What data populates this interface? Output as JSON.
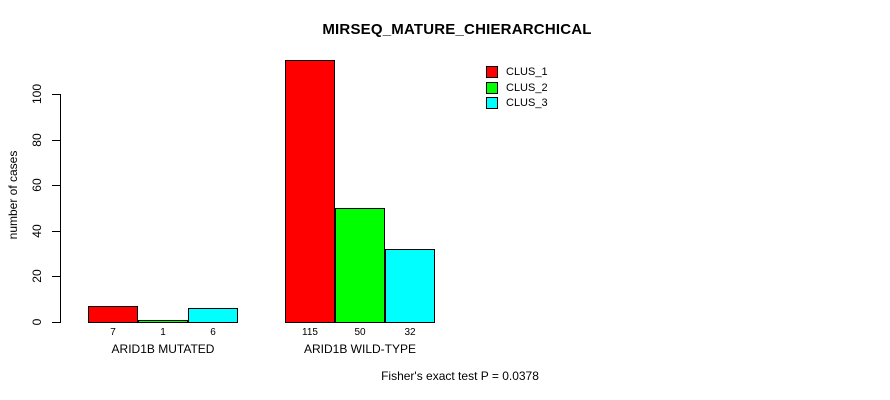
{
  "title": "MIRSEQ_MATURE_CHIERARCHICAL",
  "footer": "Fisher's exact test P = 0.0378",
  "y_axis": {
    "label": "number of cases",
    "ticks": [
      0,
      20,
      40,
      60,
      80,
      100
    ]
  },
  "legend": {
    "items": [
      {
        "label": "CLUS_1",
        "color": "#ff0000"
      },
      {
        "label": "CLUS_2",
        "color": "#00ff00"
      },
      {
        "label": "CLUS_3",
        "color": "#00ffff"
      }
    ]
  },
  "chart_data": {
    "type": "bar",
    "title": "MIRSEQ_MATURE_CHIERARCHICAL",
    "categories": [
      "ARID1B MUTATED",
      "ARID1B WILD-TYPE"
    ],
    "series": [
      {
        "name": "CLUS_1",
        "color": "#ff0000",
        "values": [
          7,
          115
        ]
      },
      {
        "name": "CLUS_2",
        "color": "#00ff00",
        "values": [
          1,
          50
        ]
      },
      {
        "name": "CLUS_3",
        "color": "#00ffff",
        "values": [
          6,
          32
        ]
      }
    ],
    "bar_value_labels": [
      [
        7,
        1,
        6
      ],
      [
        115,
        50,
        32
      ]
    ],
    "xlabel": "",
    "ylabel": "number of cases",
    "yticks": [
      0,
      20,
      40,
      60,
      80,
      100
    ],
    "ylim": [
      0,
      115
    ],
    "grid": false,
    "legend_position": "top-right-inside",
    "annotation": "Fisher's exact test P = 0.0378"
  }
}
